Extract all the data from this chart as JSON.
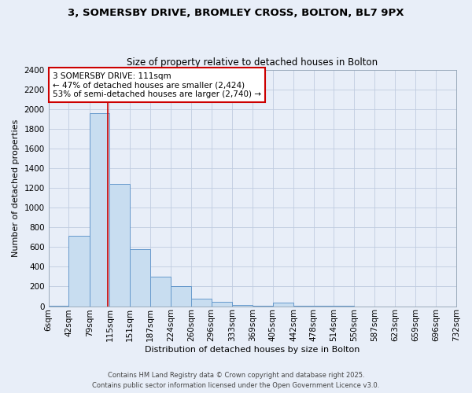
{
  "title1": "3, SOMERSBY DRIVE, BROMLEY CROSS, BOLTON, BL7 9PX",
  "title2": "Size of property relative to detached houses in Bolton",
  "xlabel": "Distribution of detached houses by size in Bolton",
  "ylabel": "Number of detached properties",
  "bin_edges": [
    6,
    42,
    79,
    115,
    151,
    187,
    224,
    260,
    296,
    333,
    369,
    405,
    442,
    478,
    514,
    550,
    587,
    623,
    659,
    696,
    732
  ],
  "bin_labels": [
    "6sqm",
    "42sqm",
    "79sqm",
    "115sqm",
    "151sqm",
    "187sqm",
    "224sqm",
    "260sqm",
    "296sqm",
    "333sqm",
    "369sqm",
    "405sqm",
    "442sqm",
    "478sqm",
    "514sqm",
    "550sqm",
    "587sqm",
    "623sqm",
    "659sqm",
    "696sqm",
    "732sqm"
  ],
  "bar_heights": [
    5,
    710,
    1960,
    1240,
    575,
    300,
    200,
    80,
    45,
    10,
    5,
    35,
    5,
    5,
    5,
    0,
    0,
    0,
    0,
    0
  ],
  "bar_color": "#c8ddf0",
  "bar_edge_color": "#6699cc",
  "property_line_x": 111,
  "property_line_color": "#cc0000",
  "annotation_title": "3 SOMERSBY DRIVE: 111sqm",
  "annotation_line1": "← 47% of detached houses are smaller (2,424)",
  "annotation_line2": "53% of semi-detached houses are larger (2,740) →",
  "annotation_box_color": "#ffffff",
  "annotation_box_edge_color": "#cc0000",
  "ylim": [
    0,
    2400
  ],
  "yticks": [
    0,
    200,
    400,
    600,
    800,
    1000,
    1200,
    1400,
    1600,
    1800,
    2000,
    2200,
    2400
  ],
  "footer1": "Contains HM Land Registry data © Crown copyright and database right 2025.",
  "footer2": "Contains public sector information licensed under the Open Government Licence v3.0.",
  "background_color": "#e8eef8",
  "plot_bg_color": "#e8eef8",
  "grid_color": "#c0cce0",
  "title_fontsize": 9.5,
  "subtitle_fontsize": 8.5,
  "axis_label_fontsize": 8.0,
  "tick_fontsize": 7.5,
  "annotation_fontsize": 7.5,
  "footer_fontsize": 6.0
}
